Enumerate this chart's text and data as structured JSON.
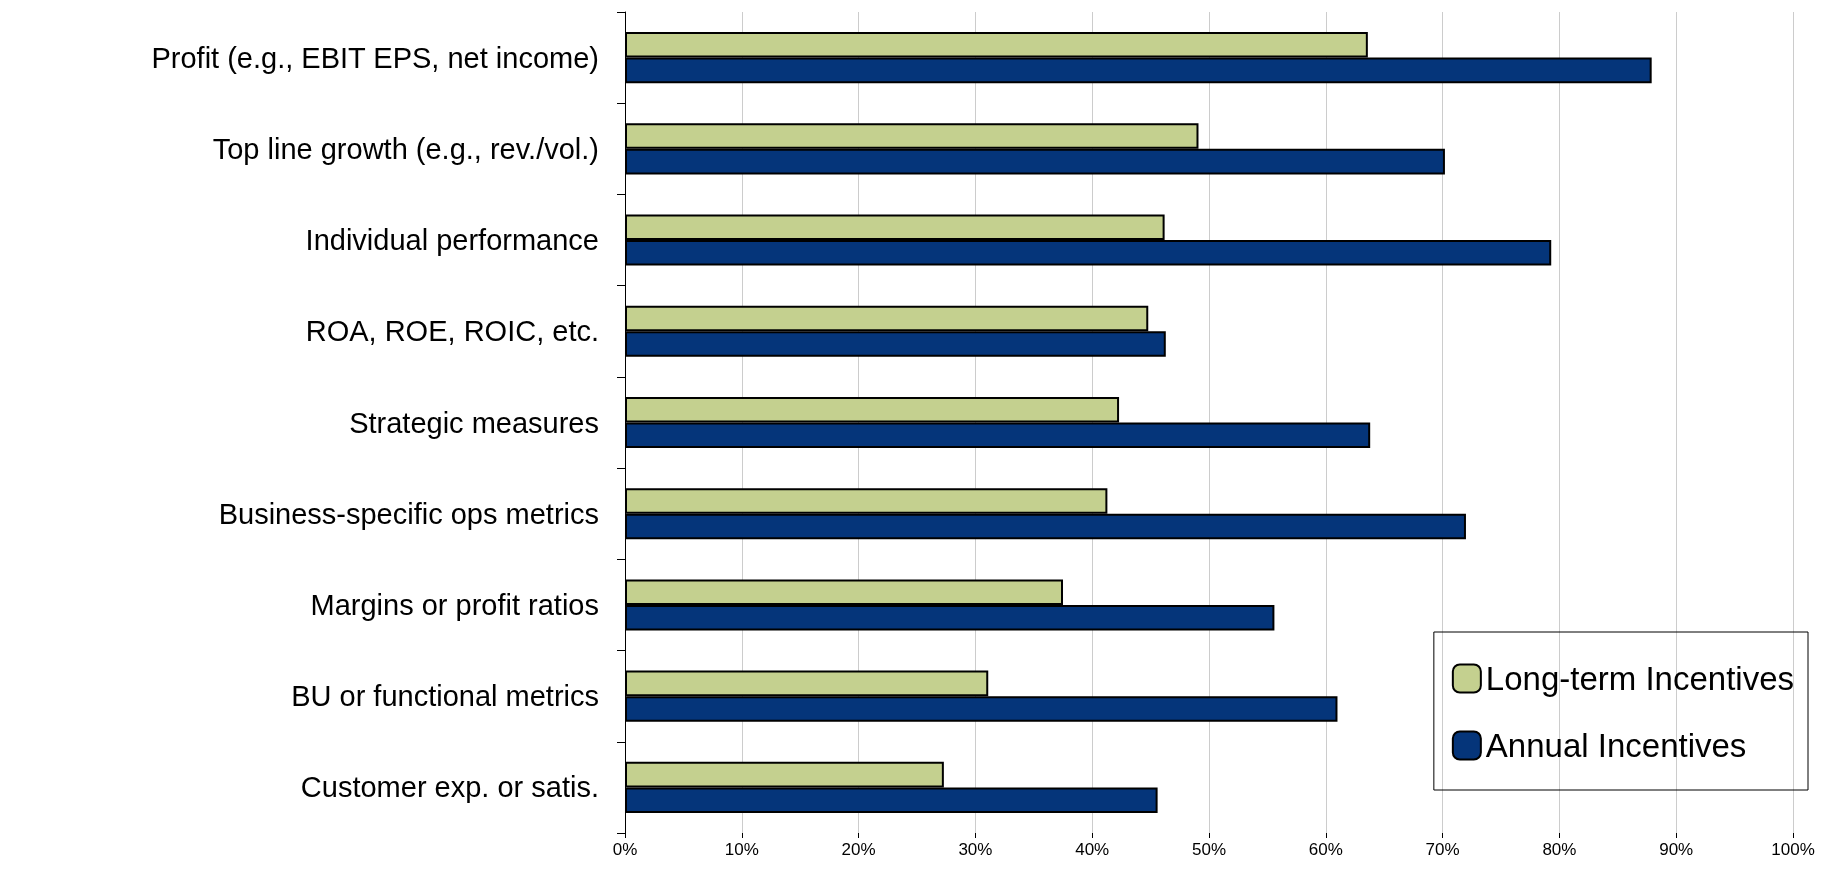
{
  "chart_data": {
    "type": "bar",
    "orientation": "horizontal",
    "categories": [
      "Profit (e.g., EBIT EPS, net income)",
      "Top line growth (e.g., rev./vol.)",
      "Individual performance",
      "ROA, ROE, ROIC, etc.",
      "Strategic measures",
      "Business-specific ops metrics",
      "Margins or profit ratios",
      "BU or functional metrics",
      "Customer exp. or satis."
    ],
    "series": [
      {
        "name": "Long-term Incentives",
        "color": "#c4d08f",
        "values": [
          63.6,
          49.1,
          46.2,
          44.8,
          42.3,
          41.3,
          37.5,
          31.1,
          27.3
        ]
      },
      {
        "name": "Annual Incentives",
        "color": "#05357a",
        "values": [
          87.9,
          70.2,
          79.3,
          46.3,
          63.8,
          72.0,
          55.6,
          61.0,
          45.6
        ]
      }
    ],
    "xlim": [
      0,
      100
    ],
    "xticks": [
      {
        "value": 0,
        "label": "0%"
      },
      {
        "value": 10,
        "label": "10%"
      },
      {
        "value": 20,
        "label": "20%"
      },
      {
        "value": 30,
        "label": "30%"
      },
      {
        "value": 40,
        "label": "40%"
      },
      {
        "value": 50,
        "label": "50%"
      },
      {
        "value": 60,
        "label": "60%"
      },
      {
        "value": 70,
        "label": "70%"
      },
      {
        "value": 80,
        "label": "80%"
      },
      {
        "value": 90,
        "label": "90%"
      },
      {
        "value": 100,
        "label": "100%"
      }
    ],
    "grid": "x",
    "legend": "bottom right"
  }
}
